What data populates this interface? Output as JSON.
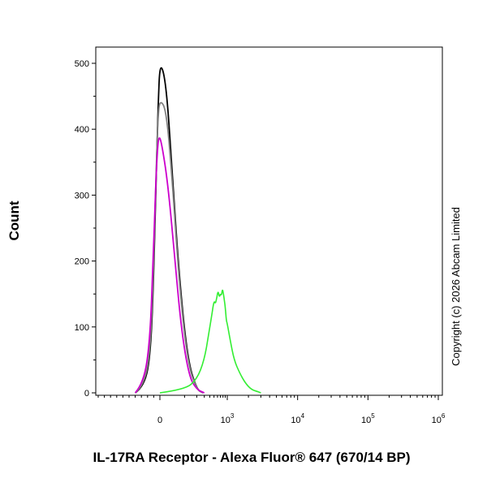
{
  "chart_data": {
    "type": "line",
    "title": "",
    "xlabel": "IL-17RA Receptor - Alexa Fluor® 647 (670/14 BP)",
    "ylabel": "Count",
    "x_scale": "biexponential",
    "ylim": [
      0,
      520
    ],
    "y_ticks": [
      {
        "value": 0,
        "label": "0"
      },
      {
        "value": 100,
        "label": "100"
      },
      {
        "value": 200,
        "label": "200"
      },
      {
        "value": 300,
        "label": "300"
      },
      {
        "value": 400,
        "label": "400"
      },
      {
        "value": 500,
        "label": "500"
      }
    ],
    "x_ticks": [
      {
        "value": 0,
        "base": "0",
        "exp": ""
      },
      {
        "value": 1000,
        "base": "10",
        "exp": "3"
      },
      {
        "value": 10000,
        "base": "10",
        "exp": "4"
      },
      {
        "value": 100000,
        "base": "10",
        "exp": "5"
      },
      {
        "value": 1000000,
        "base": "10",
        "exp": "6"
      }
    ],
    "grid": false,
    "legend": "none",
    "series": [
      {
        "color": "#000000",
        "x": [
          -400,
          -250,
          -150,
          -100,
          -60,
          -30,
          0,
          20,
          40,
          70,
          120,
          200,
          280
        ],
        "y": [
          0,
          10,
          60,
          180,
          330,
          430,
          505,
          470,
          340,
          180,
          50,
          5,
          0
        ]
      },
      {
        "color": "#808080",
        "x": [
          -400,
          -250,
          -150,
          -100,
          -60,
          -30,
          0,
          20,
          40,
          70,
          120,
          200,
          280
        ],
        "y": [
          0,
          12,
          70,
          200,
          340,
          420,
          445,
          430,
          330,
          170,
          45,
          5,
          0
        ]
      },
      {
        "color": "#cc00cc",
        "x": [
          -400,
          -260,
          -160,
          -110,
          -70,
          -40,
          -15,
          5,
          25,
          50,
          80,
          130,
          200,
          300
        ],
        "y": [
          0,
          15,
          80,
          200,
          310,
          370,
          390,
          380,
          320,
          210,
          100,
          25,
          5,
          0
        ]
      },
      {
        "color": "#33ee33",
        "x": [
          0,
          100,
          200,
          300,
          380,
          450,
          500,
          540,
          580,
          620,
          660,
          700,
          740,
          780,
          820,
          860,
          900,
          950,
          1000,
          1100,
          1250,
          1500,
          1800,
          2200,
          2700,
          3000
        ],
        "y": [
          0,
          5,
          20,
          50,
          90,
          120,
          140,
          135,
          145,
          155,
          145,
          150,
          148,
          158,
          150,
          140,
          130,
          110,
          105,
          80,
          50,
          30,
          15,
          5,
          2,
          0
        ]
      }
    ],
    "annotation": "Copyright (c) 2026 Abcam Limited"
  }
}
